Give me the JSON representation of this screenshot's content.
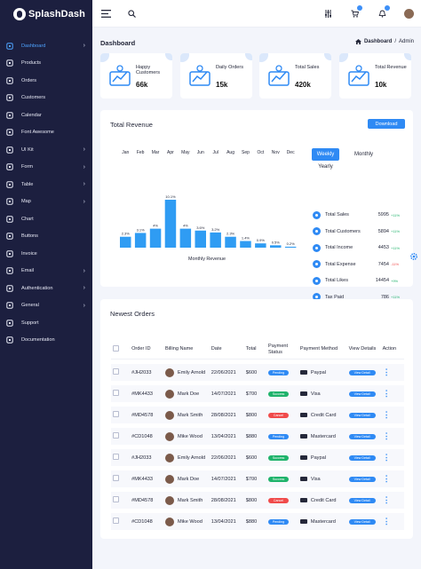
{
  "brand": {
    "name": "SplashDash"
  },
  "colors": {
    "accent": "#2f8af4",
    "sidebar": "#1c1f3f",
    "bar": "#2f9cf3"
  },
  "sidebar": {
    "items": [
      {
        "label": "Dashboard",
        "icon": "grid-icon",
        "active": true,
        "chevron": true
      },
      {
        "label": "Products",
        "icon": "box-icon"
      },
      {
        "label": "Orders",
        "icon": "cart-icon"
      },
      {
        "label": "Customers",
        "icon": "users-icon"
      },
      {
        "label": "Calendar",
        "icon": "calendar-icon"
      },
      {
        "label": "Font Awesome",
        "icon": "flag-icon"
      },
      {
        "label": "UI Kit",
        "icon": "layers-icon",
        "chevron": true
      },
      {
        "label": "Form",
        "icon": "form-icon",
        "chevron": true
      },
      {
        "label": "Table",
        "icon": "table-icon",
        "chevron": true
      },
      {
        "label": "Map",
        "icon": "map-icon",
        "chevron": true
      },
      {
        "label": "Chart",
        "icon": "chart-icon"
      },
      {
        "label": "Buttons",
        "icon": "button-icon"
      },
      {
        "label": "Invoice",
        "icon": "invoice-icon"
      },
      {
        "label": "Email",
        "icon": "mail-icon",
        "chevron": true
      },
      {
        "label": "Authentication",
        "icon": "lock-icon",
        "chevron": true
      },
      {
        "label": "General",
        "icon": "general-icon",
        "chevron": true
      },
      {
        "label": "Support",
        "icon": "support-icon"
      },
      {
        "label": "Documentation",
        "icon": "doc-icon"
      }
    ]
  },
  "header": {
    "title": "Dashboard",
    "breadcrumb_current": "Dashboard",
    "breadcrumb_sep": "/",
    "breadcrumb_parent": "Admin"
  },
  "stats": [
    {
      "title": "Happy Customers",
      "value": "66k",
      "icon": "growth-icon"
    },
    {
      "title": "Daily Orders",
      "value": "15k",
      "icon": "bag-icon"
    },
    {
      "title": "Total Sales",
      "value": "420k",
      "icon": "store-icon"
    },
    {
      "title": "Total Revenue",
      "value": "10k",
      "icon": "revenue-icon"
    }
  ],
  "revenue": {
    "title": "Total Revenue",
    "download_label": "Download",
    "toggle_weekly": "Weekly",
    "toggle_monthly": "Monthly",
    "toggle_yearly": "Yearly",
    "summary": [
      {
        "label": "Total Sales",
        "value": "5995",
        "change": "+11%",
        "positive": true
      },
      {
        "label": "Total Customers",
        "value": "5894",
        "change": "+11%",
        "positive": true
      },
      {
        "label": "Total Income",
        "value": "4453",
        "change": "+11%",
        "positive": true
      },
      {
        "label": "Total Expense",
        "value": "7454",
        "change": "-11%",
        "positive": false
      },
      {
        "label": "Total Likes",
        "value": "14454",
        "change": "+9%",
        "positive": true
      },
      {
        "label": "Tax Paid",
        "value": "786",
        "change": "+11%",
        "positive": true
      }
    ]
  },
  "chart_data": {
    "type": "bar",
    "categories": [
      "Jan",
      "Feb",
      "Mar",
      "Apr",
      "May",
      "Jun",
      "Jul",
      "Aug",
      "Sep",
      "Oct",
      "Nov",
      "Dec"
    ],
    "values": [
      2.3,
      3.1,
      4.0,
      10.1,
      4.0,
      3.6,
      3.2,
      2.3,
      1.4,
      0.9,
      0.5,
      0.2
    ],
    "data_labels": [
      "2.3%",
      "3.1%",
      "4%",
      "10.1%",
      "4%",
      "3.6%",
      "3.2%",
      "2.3%",
      "1.4%",
      "0.9%",
      "0.5%",
      "0.2%"
    ],
    "title": "",
    "xlabel": "Monthly Revenue",
    "ylabel": "",
    "ylim": [
      0,
      10.1
    ],
    "x_axis_position": "top",
    "grid": false,
    "legend": "none"
  },
  "orders": {
    "title": "Newest Orders",
    "columns": [
      "",
      "Order ID",
      "Billing Name",
      "Date",
      "Total",
      "Payment Status",
      "Payment Method",
      "View Details",
      "Action"
    ],
    "view_label": "View Detail",
    "status_colors": {
      "Pending": "#2f8af4",
      "Success": "#1fb36b",
      "Cancel": "#f04b4b"
    },
    "rows": [
      {
        "id": "#JH2033",
        "name": "Emily Arnold",
        "date": "22/06/2021",
        "total": "$600",
        "status": "Pending",
        "method": "Paypal",
        "method_icon": "paypal-icon"
      },
      {
        "id": "#MK4433",
        "name": "Mark Doe",
        "date": "14/07/2021",
        "total": "$700",
        "status": "Success",
        "method": "Visa",
        "method_icon": "card-icon"
      },
      {
        "id": "#MD4578",
        "name": "Mark Smith",
        "date": "28/08/2021",
        "total": "$800",
        "status": "Cancel",
        "method": "Credit Card",
        "method_icon": "card-icon"
      },
      {
        "id": "#CD1048",
        "name": "Mike Wood",
        "date": "13/04/2021",
        "total": "$880",
        "status": "Pending",
        "method": "Mastercard",
        "method_icon": "card-icon"
      },
      {
        "id": "#JH2033",
        "name": "Emily Arnold",
        "date": "22/06/2021",
        "total": "$600",
        "status": "Success",
        "method": "Paypal",
        "method_icon": "paypal-icon"
      },
      {
        "id": "#MK4433",
        "name": "Mark Doe",
        "date": "14/07/2021",
        "total": "$700",
        "status": "Success",
        "method": "Visa",
        "method_icon": "card-icon"
      },
      {
        "id": "#MD4578",
        "name": "Mark Smith",
        "date": "28/08/2021",
        "total": "$800",
        "status": "Cancel",
        "method": "Credit Card",
        "method_icon": "card-icon"
      },
      {
        "id": "#CD1048",
        "name": "Mike Wood",
        "date": "13/04/2021",
        "total": "$880",
        "status": "Pending",
        "method": "Mastercard",
        "method_icon": "card-icon"
      }
    ]
  }
}
